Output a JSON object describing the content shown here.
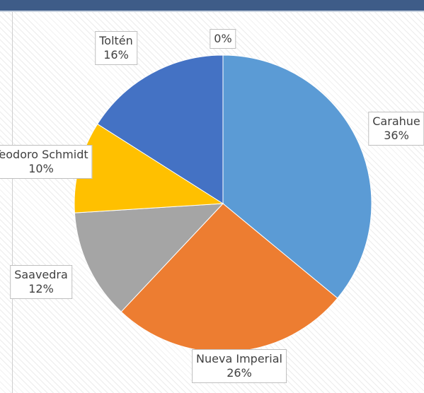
{
  "chart_data": {
    "type": "pie",
    "categories": [
      "Carahue",
      "Nueva Imperial",
      "Saavedra",
      "Teodoro Schmidt",
      "Toltén",
      null
    ],
    "values": [
      36,
      26,
      12,
      10,
      16,
      0
    ],
    "value_labels": [
      "36%",
      "26%",
      "12%",
      "10%",
      "16%",
      "0%"
    ],
    "colors": [
      "#5b9bd5",
      "#ed7d31",
      "#a5a5a5",
      "#ffc000",
      "#4472c4",
      "#70ad47"
    ]
  }
}
